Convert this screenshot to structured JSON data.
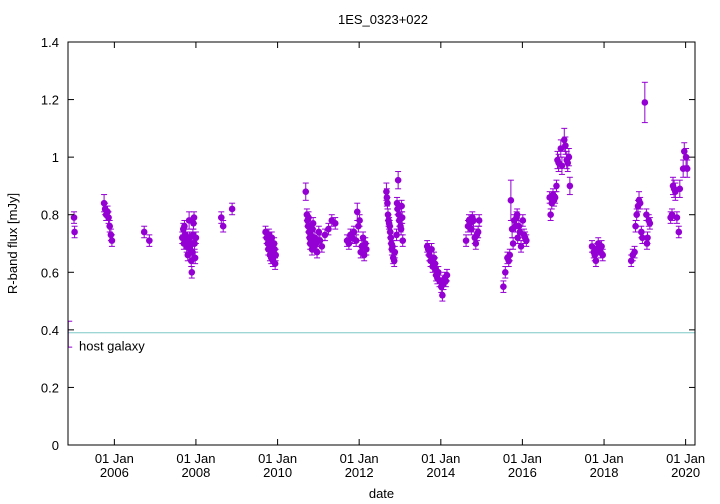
{
  "chart_data": {
    "type": "scatter",
    "title": "1ES_0323+022",
    "xlabel": "date",
    "ylabel": "R-band flux [mJy]",
    "ylim": [
      0,
      1.4
    ],
    "xlim": [
      "2004-11-12",
      "2020-03-25"
    ],
    "yticks": [
      "0",
      "0.2",
      "0.4",
      "0.6",
      "0.8",
      "1",
      "1.2",
      "1.4"
    ],
    "xticks": [
      {
        "date": "2006-01-01",
        "line1": "01 Jan",
        "line2": "2006"
      },
      {
        "date": "2008-01-01",
        "line1": "01 Jan",
        "line2": "2008"
      },
      {
        "date": "2010-01-01",
        "line1": "01 Jan",
        "line2": "2010"
      },
      {
        "date": "2012-01-01",
        "line1": "01 Jan",
        "line2": "2012"
      },
      {
        "date": "2014-01-01",
        "line1": "01 Jan",
        "line2": "2014"
      },
      {
        "date": "2016-01-01",
        "line1": "01 Jan",
        "line2": "2016"
      },
      {
        "date": "2018-01-01",
        "line1": "01 Jan",
        "line2": "2018"
      },
      {
        "date": "2020-01-01",
        "line1": "01 Jan",
        "line2": "2020"
      }
    ],
    "grid": false,
    "legend": "none",
    "marker_color": "#9400d3",
    "hline": {
      "y": 0.39,
      "label": "host galaxy",
      "color": "#7ec8c8"
    },
    "host_errorbar": {
      "date": "2004-11-14",
      "low": 0.34,
      "high": 0.43
    },
    "points": [
      [
        "2005-01-05",
        0.79,
        0.02
      ],
      [
        "2005-01-10",
        0.74,
        0.02
      ],
      [
        "2005-10-01",
        0.84,
        0.03
      ],
      [
        "2005-10-10",
        0.82,
        0.02
      ],
      [
        "2005-10-20",
        0.8,
        0.02
      ],
      [
        "2005-11-01",
        0.81,
        0.02
      ],
      [
        "2005-11-10",
        0.79,
        0.02
      ],
      [
        "2005-11-20",
        0.76,
        0.02
      ],
      [
        "2005-12-01",
        0.73,
        0.02
      ],
      [
        "2005-12-10",
        0.71,
        0.02
      ],
      [
        "2006-09-25",
        0.74,
        0.02
      ],
      [
        "2006-11-10",
        0.71,
        0.02
      ],
      [
        "2007-09-01",
        0.72,
        0.02
      ],
      [
        "2007-09-10",
        0.75,
        0.02
      ],
      [
        "2007-09-15",
        0.7,
        0.02
      ],
      [
        "2007-09-20",
        0.76,
        0.02
      ],
      [
        "2007-10-01",
        0.73,
        0.02
      ],
      [
        "2007-10-10",
        0.69,
        0.02
      ],
      [
        "2007-10-15",
        0.71,
        0.02
      ],
      [
        "2007-10-20",
        0.66,
        0.02
      ],
      [
        "2007-11-01",
        0.78,
        0.03
      ],
      [
        "2007-11-05",
        0.72,
        0.02
      ],
      [
        "2007-11-10",
        0.68,
        0.02
      ],
      [
        "2007-11-15",
        0.7,
        0.02
      ],
      [
        "2007-11-20",
        0.64,
        0.02
      ],
      [
        "2007-11-25",
        0.6,
        0.02
      ],
      [
        "2007-12-01",
        0.67,
        0.02
      ],
      [
        "2007-12-05",
        0.73,
        0.02
      ],
      [
        "2007-12-10",
        0.77,
        0.02
      ],
      [
        "2007-12-15",
        0.79,
        0.02
      ],
      [
        "2007-12-20",
        0.7,
        0.02
      ],
      [
        "2007-12-25",
        0.65,
        0.02
      ],
      [
        "2008-01-01",
        0.72,
        0.02
      ],
      [
        "2008-08-15",
        0.79,
        0.02
      ],
      [
        "2008-09-01",
        0.76,
        0.02
      ],
      [
        "2008-11-20",
        0.82,
        0.02
      ],
      [
        "2009-09-15",
        0.74,
        0.02
      ],
      [
        "2009-09-25",
        0.72,
        0.02
      ],
      [
        "2009-10-05",
        0.7,
        0.02
      ],
      [
        "2009-10-10",
        0.68,
        0.02
      ],
      [
        "2009-10-15",
        0.73,
        0.02
      ],
      [
        "2009-10-20",
        0.71,
        0.02
      ],
      [
        "2009-10-25",
        0.66,
        0.02
      ],
      [
        "2009-11-01",
        0.69,
        0.02
      ],
      [
        "2009-11-05",
        0.65,
        0.02
      ],
      [
        "2009-11-10",
        0.72,
        0.02
      ],
      [
        "2009-11-15",
        0.67,
        0.02
      ],
      [
        "2009-11-20",
        0.64,
        0.02
      ],
      [
        "2009-12-01",
        0.7,
        0.02
      ],
      [
        "2009-12-05",
        0.68,
        0.02
      ],
      [
        "2009-12-10",
        0.63,
        0.02
      ],
      [
        "2009-12-15",
        0.66,
        0.02
      ],
      [
        "2010-09-10",
        0.88,
        0.03
      ],
      [
        "2010-09-20",
        0.8,
        0.02
      ],
      [
        "2010-09-25",
        0.78,
        0.02
      ],
      [
        "2010-10-01",
        0.76,
        0.02
      ],
      [
        "2010-10-05",
        0.79,
        0.02
      ],
      [
        "2010-10-10",
        0.74,
        0.02
      ],
      [
        "2010-10-15",
        0.72,
        0.02
      ],
      [
        "2010-10-20",
        0.7,
        0.02
      ],
      [
        "2010-10-25",
        0.73,
        0.02
      ],
      [
        "2010-11-01",
        0.71,
        0.02
      ],
      [
        "2010-11-05",
        0.68,
        0.02
      ],
      [
        "2010-11-10",
        0.75,
        0.02
      ],
      [
        "2010-11-15",
        0.77,
        0.02
      ],
      [
        "2010-11-20",
        0.69,
        0.02
      ],
      [
        "2010-12-01",
        0.72,
        0.02
      ],
      [
        "2010-12-10",
        0.7,
        0.02
      ],
      [
        "2010-12-20",
        0.67,
        0.02
      ],
      [
        "2011-01-05",
        0.74,
        0.02
      ],
      [
        "2011-01-15",
        0.71,
        0.02
      ],
      [
        "2011-02-01",
        0.69,
        0.02
      ],
      [
        "2011-03-01",
        0.73,
        0.02
      ],
      [
        "2011-04-01",
        0.75,
        0.02
      ],
      [
        "2011-05-01",
        0.78,
        0.02
      ],
      [
        "2011-06-01",
        0.77,
        0.02
      ],
      [
        "2011-09-15",
        0.71,
        0.02
      ],
      [
        "2011-10-01",
        0.7,
        0.02
      ],
      [
        "2011-10-15",
        0.73,
        0.02
      ],
      [
        "2011-11-01",
        0.72,
        0.02
      ],
      [
        "2011-11-15",
        0.74,
        0.02
      ],
      [
        "2011-12-05",
        0.71,
        0.02
      ],
      [
        "2011-12-15",
        0.81,
        0.03
      ],
      [
        "2011-12-25",
        0.76,
        0.02
      ],
      [
        "2012-01-05",
        0.78,
        0.02
      ],
      [
        "2012-01-15",
        0.67,
        0.02
      ],
      [
        "2012-01-25",
        0.69,
        0.02
      ],
      [
        "2012-02-05",
        0.72,
        0.02
      ],
      [
        "2012-02-15",
        0.66,
        0.02
      ],
      [
        "2012-02-25",
        0.7,
        0.02
      ],
      [
        "2012-03-05",
        0.68,
        0.02
      ],
      [
        "2012-09-01",
        0.88,
        0.03
      ],
      [
        "2012-09-05",
        0.86,
        0.03
      ],
      [
        "2012-09-10",
        0.84,
        0.02
      ],
      [
        "2012-09-15",
        0.8,
        0.02
      ],
      [
        "2012-09-20",
        0.78,
        0.02
      ],
      [
        "2012-09-25",
        0.77,
        0.02
      ],
      [
        "2012-10-01",
        0.76,
        0.02
      ],
      [
        "2012-10-05",
        0.74,
        0.02
      ],
      [
        "2012-10-10",
        0.72,
        0.02
      ],
      [
        "2012-10-15",
        0.7,
        0.02
      ],
      [
        "2012-10-20",
        0.68,
        0.02
      ],
      [
        "2012-10-25",
        0.69,
        0.02
      ],
      [
        "2012-11-01",
        0.65,
        0.02
      ],
      [
        "2012-11-10",
        0.64,
        0.02
      ],
      [
        "2012-11-15",
        0.67,
        0.02
      ],
      [
        "2012-12-01",
        0.73,
        0.02
      ],
      [
        "2012-12-05",
        0.84,
        0.02
      ],
      [
        "2012-12-10",
        0.82,
        0.02
      ],
      [
        "2012-12-15",
        0.92,
        0.03
      ],
      [
        "2012-12-20",
        0.8,
        0.02
      ],
      [
        "2012-12-25",
        0.78,
        0.02
      ],
      [
        "2013-01-05",
        0.76,
        0.02
      ],
      [
        "2013-01-10",
        0.75,
        0.02
      ],
      [
        "2013-01-15",
        0.83,
        0.02
      ],
      [
        "2013-01-20",
        0.79,
        0.02
      ],
      [
        "2013-01-25",
        0.71,
        0.02
      ],
      [
        "2013-09-01",
        0.69,
        0.02
      ],
      [
        "2013-09-10",
        0.68,
        0.02
      ],
      [
        "2013-09-20",
        0.66,
        0.02
      ],
      [
        "2013-10-01",
        0.64,
        0.02
      ],
      [
        "2013-10-10",
        0.68,
        0.02
      ],
      [
        "2013-10-20",
        0.62,
        0.02
      ],
      [
        "2013-11-01",
        0.65,
        0.02
      ],
      [
        "2013-11-10",
        0.63,
        0.02
      ],
      [
        "2013-11-15",
        0.61,
        0.02
      ],
      [
        "2013-11-20",
        0.59,
        0.02
      ],
      [
        "2013-12-01",
        0.58,
        0.02
      ],
      [
        "2013-12-10",
        0.6,
        0.02
      ],
      [
        "2013-12-20",
        0.57,
        0.02
      ],
      [
        "2014-01-05",
        0.55,
        0.02
      ],
      [
        "2014-01-15",
        0.52,
        0.02
      ],
      [
        "2014-01-25",
        0.56,
        0.02
      ],
      [
        "2014-02-05",
        0.58,
        0.02
      ],
      [
        "2014-02-15",
        0.57,
        0.02
      ],
      [
        "2014-02-25",
        0.59,
        0.02
      ],
      [
        "2014-08-15",
        0.71,
        0.02
      ],
      [
        "2014-09-01",
        0.76,
        0.02
      ],
      [
        "2014-09-10",
        0.78,
        0.02
      ],
      [
        "2014-09-20",
        0.77,
        0.02
      ],
      [
        "2014-10-01",
        0.75,
        0.02
      ],
      [
        "2014-10-10",
        0.79,
        0.02
      ],
      [
        "2014-10-20",
        0.78,
        0.02
      ],
      [
        "2014-11-01",
        0.72,
        0.02
      ],
      [
        "2014-11-10",
        0.7,
        0.02
      ],
      [
        "2014-11-20",
        0.73,
        0.02
      ],
      [
        "2014-12-01",
        0.74,
        0.02
      ],
      [
        "2014-12-10",
        0.78,
        0.02
      ],
      [
        "2015-07-15",
        0.55,
        0.02
      ],
      [
        "2015-08-01",
        0.6,
        0.02
      ],
      [
        "2015-08-20",
        0.65,
        0.02
      ],
      [
        "2015-09-01",
        0.64,
        0.02
      ],
      [
        "2015-09-10",
        0.66,
        0.02
      ],
      [
        "2015-09-20",
        0.85,
        0.07
      ],
      [
        "2015-10-01",
        0.75,
        0.03
      ],
      [
        "2015-10-10",
        0.7,
        0.02
      ],
      [
        "2015-10-20",
        0.78,
        0.02
      ],
      [
        "2015-11-01",
        0.76,
        0.02
      ],
      [
        "2015-11-10",
        0.79,
        0.02
      ],
      [
        "2015-11-15",
        0.8,
        0.02
      ],
      [
        "2015-11-20",
        0.72,
        0.02
      ],
      [
        "2015-12-01",
        0.76,
        0.02
      ],
      [
        "2015-12-10",
        0.74,
        0.02
      ],
      [
        "2015-12-20",
        0.69,
        0.02
      ],
      [
        "2016-01-05",
        0.78,
        0.02
      ],
      [
        "2016-01-15",
        0.73,
        0.02
      ],
      [
        "2016-01-25",
        0.72,
        0.02
      ],
      [
        "2016-02-05",
        0.71,
        0.02
      ],
      [
        "2016-09-01",
        0.86,
        0.02
      ],
      [
        "2016-09-10",
        0.8,
        0.02
      ],
      [
        "2016-09-20",
        0.84,
        0.02
      ],
      [
        "2016-10-01",
        0.87,
        0.02
      ],
      [
        "2016-10-10",
        0.85,
        0.02
      ],
      [
        "2016-10-20",
        0.86,
        0.02
      ],
      [
        "2016-11-01",
        0.9,
        0.02
      ],
      [
        "2016-11-10",
        0.99,
        0.03
      ],
      [
        "2016-11-20",
        0.98,
        0.03
      ],
      [
        "2016-12-10",
        1.03,
        0.03
      ],
      [
        "2016-12-20",
        0.97,
        0.03
      ],
      [
        "2017-01-10",
        1.06,
        0.04
      ],
      [
        "2017-01-20",
        1.04,
        0.03
      ],
      [
        "2017-02-01",
        0.99,
        0.03
      ],
      [
        "2017-02-10",
        0.98,
        0.03
      ],
      [
        "2017-02-20",
        1.0,
        0.03
      ],
      [
        "2017-03-01",
        0.9,
        0.03
      ],
      [
        "2017-09-15",
        0.69,
        0.02
      ],
      [
        "2017-10-01",
        0.67,
        0.02
      ],
      [
        "2017-10-10",
        0.66,
        0.02
      ],
      [
        "2017-10-20",
        0.64,
        0.02
      ],
      [
        "2017-11-01",
        0.68,
        0.02
      ],
      [
        "2017-11-10",
        0.7,
        0.02
      ],
      [
        "2017-11-20",
        0.68,
        0.02
      ],
      [
        "2017-12-01",
        0.67,
        0.02
      ],
      [
        "2017-12-10",
        0.69,
        0.02
      ],
      [
        "2017-12-20",
        0.66,
        0.02
      ],
      [
        "2018-09-01",
        0.64,
        0.02
      ],
      [
        "2018-09-15",
        0.66,
        0.02
      ],
      [
        "2018-10-01",
        0.67,
        0.02
      ],
      [
        "2018-10-10",
        0.76,
        0.02
      ],
      [
        "2018-10-20",
        0.8,
        0.02
      ],
      [
        "2018-11-01",
        0.83,
        0.02
      ],
      [
        "2018-11-10",
        0.85,
        0.03
      ],
      [
        "2018-11-20",
        0.84,
        0.02
      ],
      [
        "2018-12-01",
        0.74,
        0.02
      ],
      [
        "2018-12-10",
        0.72,
        0.02
      ],
      [
        "2019-01-01",
        1.19,
        0.07
      ],
      [
        "2019-01-15",
        0.8,
        0.02
      ],
      [
        "2019-01-20",
        0.7,
        0.02
      ],
      [
        "2019-01-25",
        0.72,
        0.02
      ],
      [
        "2019-02-05",
        0.78,
        0.02
      ],
      [
        "2019-02-15",
        0.77,
        0.02
      ],
      [
        "2019-08-20",
        0.79,
        0.02
      ],
      [
        "2019-09-01",
        0.8,
        0.02
      ],
      [
        "2019-09-10",
        0.9,
        0.03
      ],
      [
        "2019-09-20",
        0.89,
        0.03
      ],
      [
        "2019-10-01",
        0.88,
        0.03
      ],
      [
        "2019-10-15",
        0.79,
        0.02
      ],
      [
        "2019-11-01",
        0.74,
        0.02
      ],
      [
        "2019-11-10",
        0.89,
        0.03
      ],
      [
        "2019-12-10",
        0.96,
        0.03
      ],
      [
        "2019-12-20",
        1.02,
        0.03
      ],
      [
        "2020-01-05",
        1.0,
        0.03
      ],
      [
        "2020-01-15",
        0.96,
        0.03
      ]
    ]
  }
}
